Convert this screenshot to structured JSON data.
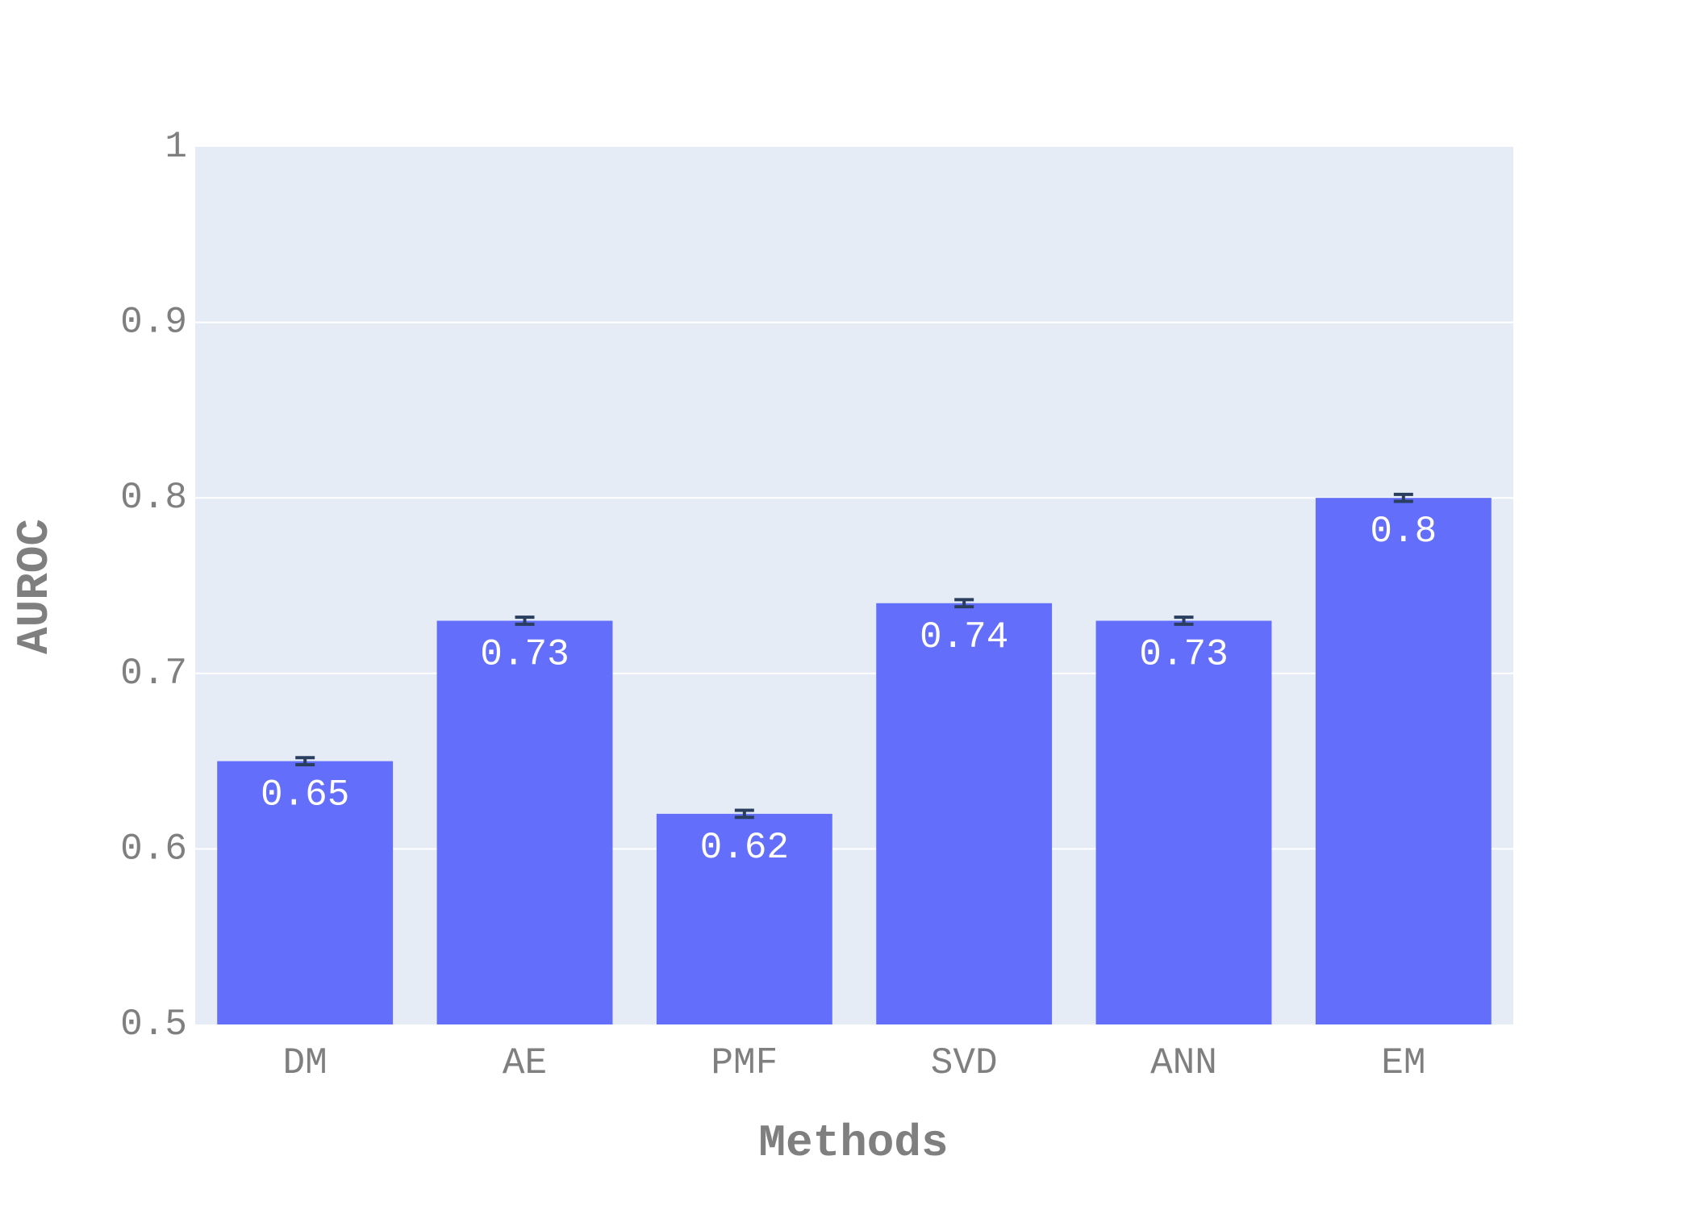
{
  "chart_data": {
    "type": "bar",
    "categories": [
      "DM",
      "AE",
      "PMF",
      "SVD",
      "ANN",
      "EM"
    ],
    "values": [
      0.65,
      0.73,
      0.62,
      0.74,
      0.73,
      0.8
    ],
    "data_labels": [
      "0.65",
      "0.73",
      "0.62",
      "0.74",
      "0.73",
      "0.8"
    ],
    "error": [
      0.002,
      0.002,
      0.002,
      0.002,
      0.002,
      0.002
    ],
    "xlabel": "Methods",
    "ylabel": "AUROC",
    "ylim": [
      0.5,
      1.0
    ],
    "yticks": [
      0.5,
      0.6,
      0.7,
      0.8,
      0.9,
      1.0
    ],
    "ytick_labels": [
      "0.5",
      "0.6",
      "0.7",
      "0.8",
      "0.9",
      "1"
    ],
    "grid": true,
    "colors": {
      "bar": "#636efa",
      "plot_background": "#e5ecf6",
      "grid": "#ffffff",
      "error_bar": "#2a3f5f",
      "text": "#7f7f7f",
      "data_label": "#ffffff"
    }
  }
}
